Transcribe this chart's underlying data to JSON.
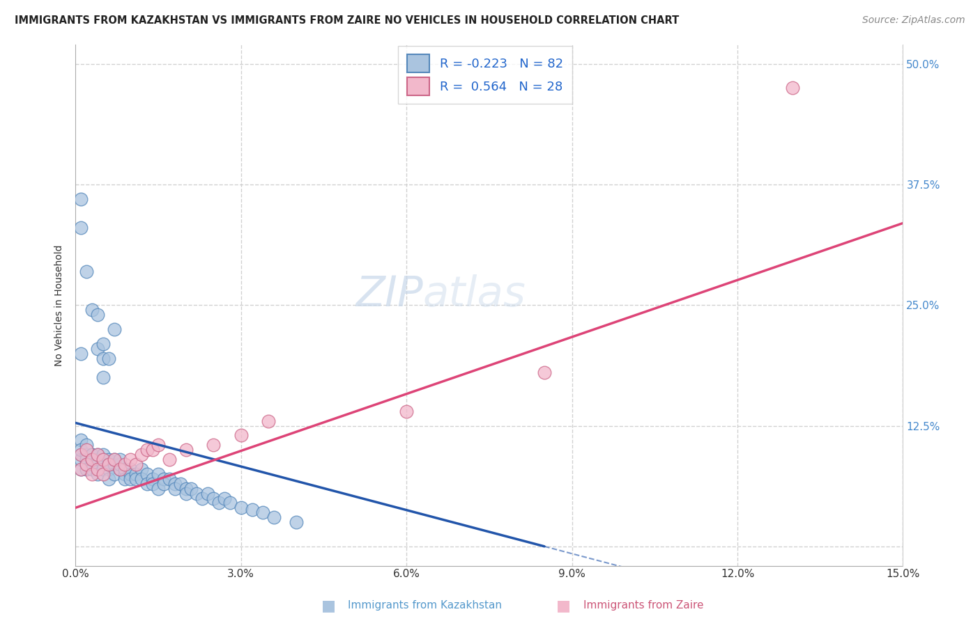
{
  "title": "IMMIGRANTS FROM KAZAKHSTAN VS IMMIGRANTS FROM ZAIRE NO VEHICLES IN HOUSEHOLD CORRELATION CHART",
  "source": "Source: ZipAtlas.com",
  "ylabel": "No Vehicles in Household",
  "xlim": [
    0.0,
    0.15
  ],
  "ylim": [
    -0.02,
    0.52
  ],
  "plot_ylim": [
    0.0,
    0.5
  ],
  "xticks": [
    0.0,
    0.03,
    0.06,
    0.09,
    0.12,
    0.15
  ],
  "xtick_labels": [
    "0.0%",
    "3.0%",
    "6.0%",
    "9.0%",
    "12.0%",
    "15.0%"
  ],
  "yticks": [
    0.0,
    0.125,
    0.25,
    0.375,
    0.5
  ],
  "ytick_labels_left": [
    "",
    "",
    "",
    "",
    ""
  ],
  "ytick_labels_right": [
    "",
    "12.5%",
    "25.0%",
    "37.5%",
    "50.0%"
  ],
  "legend_labels": [
    "Immigrants from Kazakhstan",
    "Immigrants from Zaire"
  ],
  "kazakhstan_color": "#aac4df",
  "zaire_color": "#f2b8cb",
  "kazakhstan_edge": "#5588bb",
  "zaire_edge": "#cc6688",
  "trend_kazakhstan_color": "#2255aa",
  "trend_zaire_color": "#dd4477",
  "R_kazakhstan": -0.223,
  "N_kazakhstan": 82,
  "R_zaire": 0.564,
  "N_zaire": 28,
  "watermark_zip": "ZIP",
  "watermark_atlas": "atlas",
  "background_color": "#ffffff",
  "grid_color": "#cccccc",
  "title_fontsize": 10.5,
  "axis_label_fontsize": 10,
  "tick_fontsize": 11,
  "legend_fontsize": 13,
  "source_fontsize": 10,
  "watermark_fontsize": 44,
  "scatter_size": 180,
  "scatter_alpha": 0.75,
  "kaz_x": [
    0.001,
    0.001,
    0.001,
    0.001,
    0.001,
    0.002,
    0.002,
    0.002,
    0.002,
    0.002,
    0.003,
    0.003,
    0.003,
    0.003,
    0.003,
    0.004,
    0.004,
    0.004,
    0.004,
    0.005,
    0.005,
    0.005,
    0.005,
    0.006,
    0.006,
    0.006,
    0.006,
    0.007,
    0.007,
    0.007,
    0.008,
    0.008,
    0.008,
    0.009,
    0.009,
    0.009,
    0.01,
    0.01,
    0.01,
    0.011,
    0.011,
    0.012,
    0.012,
    0.013,
    0.013,
    0.014,
    0.014,
    0.015,
    0.015,
    0.016,
    0.016,
    0.017,
    0.018,
    0.018,
    0.019,
    0.02,
    0.02,
    0.021,
    0.022,
    0.023,
    0.024,
    0.025,
    0.026,
    0.027,
    0.028,
    0.03,
    0.032,
    0.034,
    0.036,
    0.04,
    0.001,
    0.002,
    0.003,
    0.004,
    0.004,
    0.005,
    0.005,
    0.005,
    0.006,
    0.007,
    0.001,
    0.001
  ],
  "kaz_y": [
    0.095,
    0.11,
    0.08,
    0.09,
    0.1,
    0.095,
    0.105,
    0.09,
    0.085,
    0.08,
    0.095,
    0.09,
    0.085,
    0.095,
    0.08,
    0.09,
    0.085,
    0.095,
    0.075,
    0.09,
    0.085,
    0.095,
    0.08,
    0.09,
    0.08,
    0.085,
    0.07,
    0.085,
    0.09,
    0.075,
    0.08,
    0.085,
    0.09,
    0.075,
    0.08,
    0.07,
    0.08,
    0.075,
    0.07,
    0.075,
    0.07,
    0.08,
    0.07,
    0.075,
    0.065,
    0.07,
    0.065,
    0.075,
    0.06,
    0.07,
    0.065,
    0.07,
    0.065,
    0.06,
    0.065,
    0.06,
    0.055,
    0.06,
    0.055,
    0.05,
    0.055,
    0.05,
    0.045,
    0.05,
    0.045,
    0.04,
    0.038,
    0.035,
    0.03,
    0.025,
    0.2,
    0.285,
    0.245,
    0.205,
    0.24,
    0.175,
    0.195,
    0.21,
    0.195,
    0.225,
    0.33,
    0.36
  ],
  "zaire_x": [
    0.001,
    0.001,
    0.002,
    0.002,
    0.003,
    0.003,
    0.004,
    0.004,
    0.005,
    0.005,
    0.006,
    0.007,
    0.008,
    0.009,
    0.01,
    0.011,
    0.012,
    0.013,
    0.014,
    0.015,
    0.017,
    0.02,
    0.025,
    0.03,
    0.035,
    0.06,
    0.085,
    0.13
  ],
  "zaire_y": [
    0.095,
    0.08,
    0.1,
    0.085,
    0.09,
    0.075,
    0.095,
    0.08,
    0.09,
    0.075,
    0.085,
    0.09,
    0.08,
    0.085,
    0.09,
    0.085,
    0.095,
    0.1,
    0.1,
    0.105,
    0.09,
    0.1,
    0.105,
    0.115,
    0.13,
    0.14,
    0.18,
    0.475
  ],
  "trend_kaz_x0": 0.0,
  "trend_kaz_y0": 0.128,
  "trend_kaz_x1": 0.085,
  "trend_kaz_y1": 0.0,
  "trend_zaire_x0": 0.0,
  "trend_zaire_y0": 0.04,
  "trend_zaire_x1": 0.15,
  "trend_zaire_y1": 0.335
}
